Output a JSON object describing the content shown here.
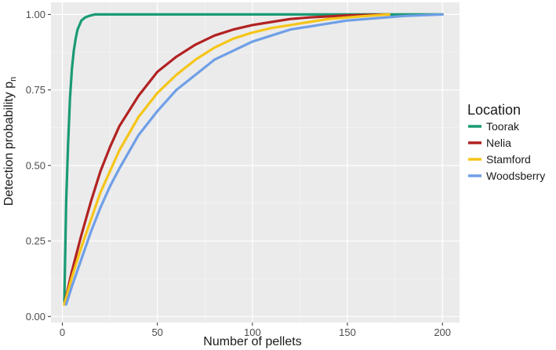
{
  "chart_data": {
    "type": "line",
    "xlabel": "Number of pellets",
    "ylabel": "Detection probability p",
    "ylabel_subscript": "n",
    "xlim": [
      -6,
      209
    ],
    "ylim": [
      -0.02,
      1.04
    ],
    "x_ticks": [
      0,
      50,
      100,
      150,
      200
    ],
    "x_tick_labels": [
      "0",
      "50",
      "100",
      "150",
      "200"
    ],
    "y_ticks": [
      0,
      0.25,
      0.5,
      0.75,
      1.0
    ],
    "y_tick_labels": [
      "0.00",
      "0.25",
      "0.50",
      "0.75",
      "1.00"
    ],
    "grid": true,
    "legend": {
      "title": "Location",
      "position": "right"
    },
    "series": [
      {
        "name": "Toorak",
        "color": "#1a9b74",
        "x": [
          1,
          2,
          3,
          4,
          5,
          6,
          7,
          8,
          10,
          12,
          14,
          17,
          20,
          30,
          50,
          100,
          150,
          200
        ],
        "y": [
          0.05,
          0.38,
          0.57,
          0.72,
          0.82,
          0.88,
          0.92,
          0.95,
          0.98,
          0.99,
          0.995,
          1.0,
          1.0,
          1.0,
          1.0,
          1.0,
          1.0,
          1.0
        ]
      },
      {
        "name": "Nelia",
        "color": "#b22222",
        "x": [
          1,
          5,
          10,
          15,
          20,
          25,
          30,
          40,
          50,
          60,
          70,
          80,
          90,
          100,
          110,
          120,
          130,
          150,
          172
        ],
        "y": [
          0.04,
          0.15,
          0.27,
          0.38,
          0.48,
          0.56,
          0.63,
          0.73,
          0.81,
          0.86,
          0.9,
          0.93,
          0.95,
          0.965,
          0.975,
          0.985,
          0.99,
          0.997,
          1.0
        ]
      },
      {
        "name": "Stamford",
        "color": "#f5c518",
        "x": [
          1,
          5,
          10,
          15,
          20,
          25,
          30,
          40,
          50,
          60,
          70,
          80,
          90,
          100,
          110,
          120,
          130,
          140,
          150,
          160,
          172
        ],
        "y": [
          0.04,
          0.13,
          0.23,
          0.32,
          0.41,
          0.48,
          0.55,
          0.66,
          0.74,
          0.8,
          0.85,
          0.89,
          0.92,
          0.94,
          0.955,
          0.965,
          0.975,
          0.985,
          0.99,
          0.995,
          1.0
        ]
      },
      {
        "name": "Woodsberry",
        "color": "#6f9fe6",
        "x": [
          2,
          5,
          10,
          15,
          20,
          25,
          30,
          40,
          50,
          60,
          70,
          80,
          90,
          100,
          110,
          120,
          130,
          140,
          150,
          160,
          180,
          200
        ],
        "y": [
          0.04,
          0.1,
          0.19,
          0.28,
          0.36,
          0.43,
          0.49,
          0.6,
          0.68,
          0.75,
          0.8,
          0.85,
          0.88,
          0.91,
          0.93,
          0.95,
          0.96,
          0.97,
          0.98,
          0.985,
          0.995,
          1.0
        ]
      }
    ]
  }
}
